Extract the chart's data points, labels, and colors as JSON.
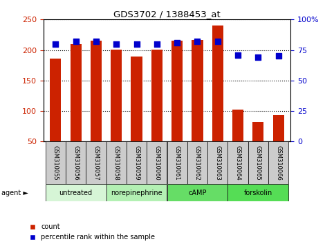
{
  "title": "GDS3702 / 1388453_at",
  "samples": [
    "GSM310055",
    "GSM310056",
    "GSM310057",
    "GSM310058",
    "GSM310059",
    "GSM310060",
    "GSM310061",
    "GSM310062",
    "GSM310063",
    "GSM310064",
    "GSM310065",
    "GSM310066"
  ],
  "counts": [
    186,
    210,
    215,
    201,
    189,
    201,
    215,
    217,
    240,
    102,
    82,
    93
  ],
  "percentiles": [
    80,
    82,
    82,
    80,
    80,
    80,
    81,
    82,
    82,
    71,
    69,
    70
  ],
  "agents": [
    {
      "label": "untreated",
      "start": 0,
      "end": 3,
      "color": "#d6f5d6"
    },
    {
      "label": "norepinephrine",
      "start": 3,
      "end": 6,
      "color": "#b3f0b3"
    },
    {
      "label": "cAMP",
      "start": 6,
      "end": 9,
      "color": "#66dd66"
    },
    {
      "label": "forskolin",
      "start": 9,
      "end": 12,
      "color": "#55dd55"
    }
  ],
  "bar_color": "#cc2200",
  "dot_color": "#0000cc",
  "ylim_left": [
    50,
    250
  ],
  "ylim_right": [
    0,
    100
  ],
  "yticks_left": [
    50,
    100,
    150,
    200,
    250
  ],
  "yticks_right": [
    0,
    25,
    50,
    75,
    100
  ],
  "ytick_labels_right": [
    "0",
    "25",
    "50",
    "75",
    "100%"
  ],
  "xlabel_color": "#cc2200",
  "dot_color_blue": "#0000cc",
  "bar_width": 0.55,
  "dot_size": 40,
  "sample_bg_color": "#cccccc",
  "legend_count_color": "#cc2200",
  "legend_pct_color": "#0000cc",
  "legend_label_count": "count",
  "legend_label_pct": "percentile rank within the sample"
}
